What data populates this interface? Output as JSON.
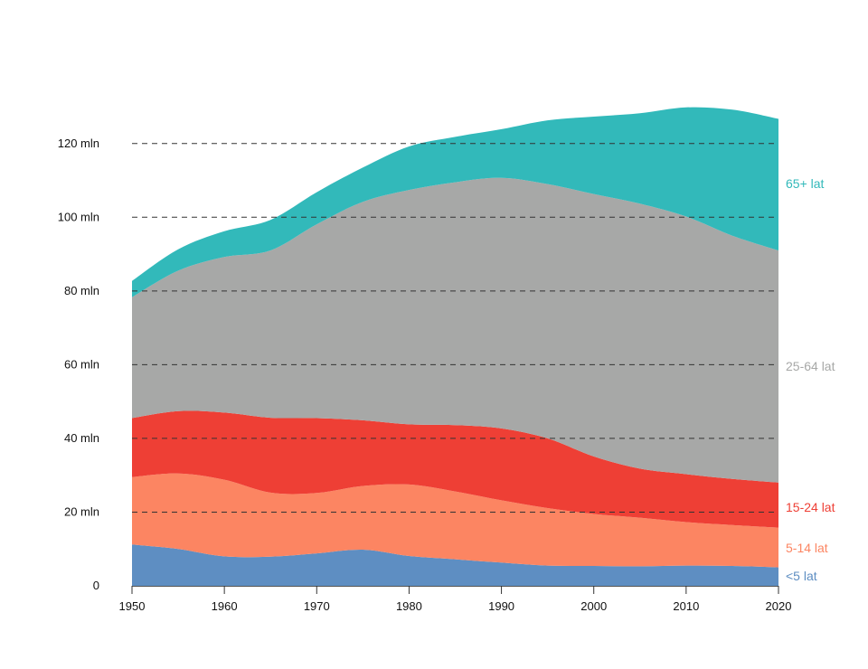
{
  "chart_data": {
    "type": "area",
    "stacked": true,
    "x": [
      1950,
      1955,
      1960,
      1965,
      1970,
      1975,
      1980,
      1985,
      1990,
      1995,
      2000,
      2005,
      2010,
      2015,
      2020
    ],
    "xlim": [
      1950,
      2020
    ],
    "ylim": [
      0,
      130
    ],
    "x_ticks": [
      "1950",
      "1960",
      "1970",
      "1980",
      "1990",
      "2000",
      "2010",
      "2020"
    ],
    "y_ticks": [
      {
        "value": 0,
        "label": "0"
      },
      {
        "value": 20,
        "label": "20 mln"
      },
      {
        "value": 40,
        "label": "40 mln"
      },
      {
        "value": 60,
        "label": "60 mln"
      },
      {
        "value": 80,
        "label": "80 mln"
      },
      {
        "value": 100,
        "label": "100 mln"
      },
      {
        "value": 120,
        "label": "120 mln"
      }
    ],
    "grid": "horizontal-dashed",
    "legend": "right, labels at series ends",
    "series": [
      {
        "name": "<5 lat",
        "color": "#5e8ec2",
        "values": [
          11.2,
          10.0,
          8.0,
          7.9,
          8.8,
          9.8,
          8.1,
          7.2,
          6.3,
          5.5,
          5.4,
          5.3,
          5.5,
          5.4,
          5.0
        ]
      },
      {
        "name": "5-14 lat",
        "color": "#fc8562",
        "values": [
          18.3,
          20.5,
          20.8,
          17.4,
          16.4,
          17.3,
          19.4,
          18.4,
          16.9,
          15.6,
          14.1,
          13.2,
          11.8,
          11.1,
          10.8
        ]
      },
      {
        "name": "15-24 lat",
        "color": "#ee3f35",
        "values": [
          16.0,
          16.9,
          18.2,
          20.3,
          20.3,
          17.8,
          16.3,
          18.0,
          19.5,
          18.9,
          15.6,
          13.3,
          13.0,
          12.5,
          12.2
        ]
      },
      {
        "name": "25-64 lat",
        "color": "#a7a8a7",
        "values": [
          32.8,
          38.1,
          42.2,
          45.4,
          52.6,
          59.3,
          63.6,
          65.9,
          68.0,
          69.0,
          71.2,
          71.9,
          69.9,
          66.0,
          63.0
        ]
      },
      {
        "name": "65+ lat",
        "color": "#32b9ba",
        "values": [
          4.4,
          5.8,
          7.0,
          8.3,
          8.7,
          9.3,
          11.8,
          12.3,
          13.2,
          17.3,
          21.0,
          24.5,
          29.6,
          34.2,
          35.7
        ]
      }
    ]
  }
}
